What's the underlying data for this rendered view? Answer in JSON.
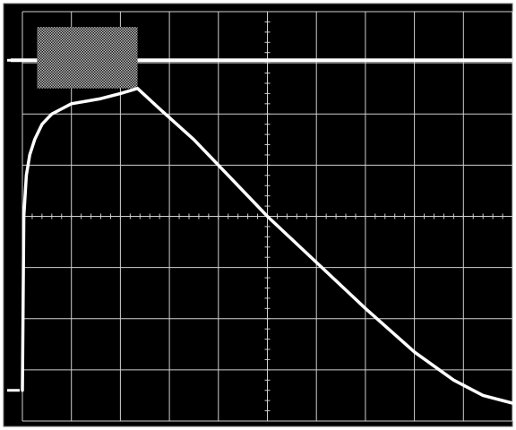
{
  "chart_data": {
    "type": "line",
    "grid": true,
    "divisions": {
      "x": 10,
      "y": 8
    },
    "xlim": [
      0,
      10
    ],
    "ylim": [
      -4,
      4
    ],
    "colors": {
      "background": "#000000",
      "bezel": "#ffffff",
      "grid": "#cfcfcf",
      "trace": "#ffffff",
      "burst": "#bdbdbd"
    },
    "series": [
      {
        "type": "digital",
        "baseline": 3.05,
        "burst": {
          "x_start": 0.3,
          "x_end": 2.35,
          "y_min": 2.5,
          "y_max": 3.7
        },
        "x": [
          -0.35,
          0.0,
          2.35,
          10.0
        ],
        "y": [
          3.05,
          3.05,
          3.05,
          3.05
        ]
      },
      {
        "type": "analog",
        "x": [
          0.0,
          0.03,
          0.08,
          0.15,
          0.25,
          0.4,
          0.6,
          0.8,
          1.0,
          1.3,
          1.6,
          2.0,
          2.35,
          2.8,
          3.5,
          4.3,
          5.0,
          6.0,
          7.0,
          8.0,
          8.8,
          9.4,
          10.0
        ],
        "y": [
          -3.4,
          0.0,
          0.8,
          1.2,
          1.5,
          1.8,
          2.0,
          2.1,
          2.2,
          2.25,
          2.3,
          2.4,
          2.5,
          2.1,
          1.5,
          0.7,
          0.0,
          -0.9,
          -1.8,
          -2.65,
          -3.2,
          -3.5,
          -3.65
        ]
      }
    ],
    "markers": [
      {
        "name": "ch1-ground",
        "y": 3.05
      },
      {
        "name": "ch2-ground",
        "y": -3.4
      }
    ]
  }
}
